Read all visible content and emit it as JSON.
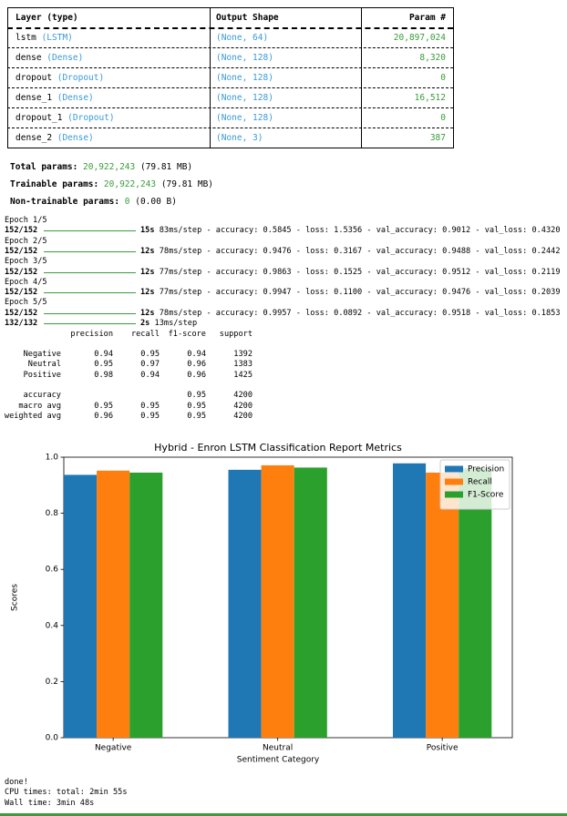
{
  "summary": {
    "columns": [
      "Layer (type)",
      "Output Shape",
      "Param #"
    ],
    "rows": [
      {
        "name": "lstm",
        "type": "(LSTM)",
        "shape": "(None, 64)",
        "params": "20,897,024"
      },
      {
        "name": "dense",
        "type": "(Dense)",
        "shape": "(None, 128)",
        "params": "8,320"
      },
      {
        "name": "dropout",
        "type": "(Dropout)",
        "shape": "(None, 128)",
        "params": "0"
      },
      {
        "name": "dense_1",
        "type": "(Dense)",
        "shape": "(None, 128)",
        "params": "16,512"
      },
      {
        "name": "dropout_1",
        "type": "(Dropout)",
        "shape": "(None, 128)",
        "params": "0"
      },
      {
        "name": "dense_2",
        "type": "(Dense)",
        "shape": "(None, 3)",
        "params": "387"
      }
    ]
  },
  "params": [
    {
      "label": "Total params:",
      "count": "20,922,243",
      "size": "(79.81 MB)"
    },
    {
      "label": "Trainable params:",
      "count": "20,922,243",
      "size": "(79.81 MB)"
    },
    {
      "label": "Non-trainable params:",
      "count": "0",
      "size": "(0.00 B)"
    }
  ],
  "training": [
    {
      "epoch": "Epoch 1/5",
      "steps": "152/152",
      "time": "15s",
      "log": "83ms/step - accuracy: 0.5845 - loss: 1.5356 - val_accuracy: 0.9012 - val_loss: 0.4320"
    },
    {
      "epoch": "Epoch 2/5",
      "steps": "152/152",
      "time": "12s",
      "log": "78ms/step - accuracy: 0.9476 - loss: 0.3167 - val_accuracy: 0.9488 - val_loss: 0.2442"
    },
    {
      "epoch": "Epoch 3/5",
      "steps": "152/152",
      "time": "12s",
      "log": "77ms/step - accuracy: 0.9863 - loss: 0.1525 - val_accuracy: 0.9512 - val_loss: 0.2119"
    },
    {
      "epoch": "Epoch 4/5",
      "steps": "152/152",
      "time": "12s",
      "log": "77ms/step - accuracy: 0.9947 - loss: 0.1100 - val_accuracy: 0.9476 - val_loss: 0.2039"
    },
    {
      "epoch": "Epoch 5/5",
      "steps": "152/152",
      "time": "12s",
      "log": "78ms/step - accuracy: 0.9957 - loss: 0.0892 - val_accuracy: 0.9518 - val_loss: 0.1853"
    }
  ],
  "prediction": {
    "steps": "132/132",
    "time": "2s",
    "log": "13ms/step"
  },
  "report": {
    "columns": [
      "precision",
      "recall",
      "f1-score",
      "support"
    ],
    "rows": [
      {
        "label": "Negative",
        "cells": [
          "0.94",
          "0.95",
          "0.94",
          "1392"
        ]
      },
      {
        "label": "Neutral",
        "cells": [
          "0.95",
          "0.97",
          "0.96",
          "1383"
        ]
      },
      {
        "label": "Positive",
        "cells": [
          "0.98",
          "0.94",
          "0.96",
          "1425"
        ]
      },
      {
        "label": "accuracy",
        "cells": [
          null,
          null,
          "0.95",
          "4200"
        ]
      },
      {
        "label": "macro avg",
        "cells": [
          "0.95",
          "0.95",
          "0.95",
          "4200"
        ]
      },
      {
        "label": "weighted avg",
        "cells": [
          "0.96",
          "0.95",
          "0.95",
          "4200"
        ]
      }
    ]
  },
  "chart_data": {
    "type": "bar",
    "title": "Hybrid - Enron LSTM Classification Report Metrics",
    "x_label": "Sentiment Category",
    "y_label": "Scores",
    "categories": [
      "Negative",
      "Neutral",
      "Positive"
    ],
    "series": [
      {
        "name": "Precision",
        "color": "#1f77b4",
        "values": [
          0.937,
          0.955,
          0.978
        ]
      },
      {
        "name": "Recall",
        "color": "#ff7f0e",
        "values": [
          0.952,
          0.971,
          0.945
        ]
      },
      {
        "name": "F1-Score",
        "color": "#2ca02c",
        "values": [
          0.945,
          0.963,
          0.96
        ]
      }
    ],
    "ylim": [
      0,
      1.0
    ],
    "yticks": [
      {
        "value": 0,
        "label": "0.0"
      },
      {
        "value": 0.2,
        "label": "0.2"
      },
      {
        "value": 0.4,
        "label": "0.4"
      },
      {
        "value": 0.6,
        "label": "0.6"
      },
      {
        "value": 0.8,
        "label": "0.8"
      },
      {
        "value": 1.0,
        "label": "1.0"
      }
    ],
    "legend": "upper right"
  },
  "footer": [
    "done!",
    "CPU times: total: 2min 55s",
    "Wall time: 3min 48s"
  ]
}
